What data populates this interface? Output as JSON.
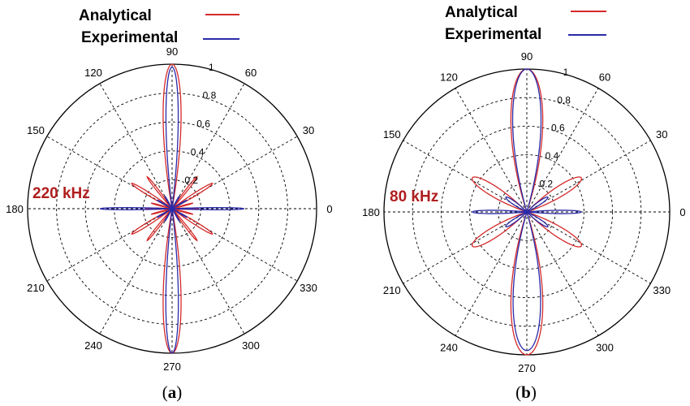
{
  "legend": {
    "analytical_label": "Analytical",
    "experimental_label": "Experimental"
  },
  "colors": {
    "analytical": "#d42a2a",
    "experimental": "#2a2aa8",
    "frequency_label": "#b01e1e",
    "grid": "#000000"
  },
  "chart_data": [
    {
      "type": "polar-line",
      "panel_caption_open": "(",
      "panel_caption_letter": "a",
      "panel_caption_close": ")",
      "annotation": "220 kHz",
      "angle_ticks": [
        "0",
        "30",
        "60",
        "90",
        "120",
        "150",
        "180",
        "210",
        "240",
        "270",
        "300",
        "330"
      ],
      "radial_ticks": [
        "0.2",
        "0.4",
        "0.6",
        "0.8",
        "1"
      ],
      "radial_range": [
        0,
        1
      ],
      "grid": true,
      "legend_position": "top",
      "series": [
        {
          "name": "Analytical",
          "color_key": "analytical",
          "lobes": [
            {
              "center": 90,
              "magnitude": 1.0,
              "half_width": 10
            },
            {
              "center": 270,
              "magnitude": 1.0,
              "half_width": 10
            },
            {
              "center": 148,
              "magnitude": 0.33,
              "half_width": 5
            },
            {
              "center": 32,
              "magnitude": 0.33,
              "half_width": 5
            },
            {
              "center": 212,
              "magnitude": 0.33,
              "half_width": 5
            },
            {
              "center": 328,
              "magnitude": 0.33,
              "half_width": 5
            },
            {
              "center": 128,
              "magnitude": 0.28,
              "half_width": 4
            },
            {
              "center": 52,
              "magnitude": 0.28,
              "half_width": 4
            },
            {
              "center": 232,
              "magnitude": 0.28,
              "half_width": 4
            },
            {
              "center": 308,
              "magnitude": 0.28,
              "half_width": 4
            },
            {
              "center": 0,
              "magnitude": 0.18,
              "half_width": 4
            },
            {
              "center": 180,
              "magnitude": 0.18,
              "half_width": 4
            },
            {
              "center": 165,
              "magnitude": 0.15,
              "half_width": 3
            },
            {
              "center": 15,
              "magnitude": 0.15,
              "half_width": 3
            },
            {
              "center": 195,
              "magnitude": 0.15,
              "half_width": 3
            },
            {
              "center": 345,
              "magnitude": 0.15,
              "half_width": 3
            }
          ]
        },
        {
          "name": "Experimental",
          "color_key": "experimental",
          "lobes": [
            {
              "center": 90,
              "magnitude": 0.98,
              "half_width": 7
            },
            {
              "center": 270,
              "magnitude": 1.0,
              "half_width": 7
            },
            {
              "center": 0,
              "magnitude": 0.5,
              "half_width": 2.5
            },
            {
              "center": 180,
              "magnitude": 0.5,
              "half_width": 2.5
            },
            {
              "center": 150,
              "magnitude": 0.12,
              "half_width": 3
            },
            {
              "center": 30,
              "magnitude": 0.12,
              "half_width": 3
            },
            {
              "center": 210,
              "magnitude": 0.12,
              "half_width": 3
            },
            {
              "center": 330,
              "magnitude": 0.12,
              "half_width": 3
            },
            {
              "center": 120,
              "magnitude": 0.1,
              "half_width": 3
            },
            {
              "center": 60,
              "magnitude": 0.1,
              "half_width": 3
            },
            {
              "center": 240,
              "magnitude": 0.1,
              "half_width": 3
            },
            {
              "center": 300,
              "magnitude": 0.1,
              "half_width": 3
            }
          ]
        }
      ]
    },
    {
      "type": "polar-line",
      "panel_caption_open": "(",
      "panel_caption_letter": "b",
      "panel_caption_close": ")",
      "annotation": "80 kHz",
      "angle_ticks": [
        "0",
        "30",
        "60",
        "90",
        "120",
        "150",
        "180",
        "210",
        "240",
        "270",
        "300",
        "330"
      ],
      "radial_ticks": [
        "0.2",
        "0.4",
        "0.6",
        "0.8",
        "1"
      ],
      "radial_range": [
        0,
        1
      ],
      "grid": true,
      "legend_position": "top",
      "series": [
        {
          "name": "Analytical",
          "color_key": "analytical",
          "lobes": [
            {
              "center": 90,
              "magnitude": 1.0,
              "half_width": 18
            },
            {
              "center": 270,
              "magnitude": 1.0,
              "half_width": 18
            },
            {
              "center": 148,
              "magnitude": 0.45,
              "half_width": 13
            },
            {
              "center": 32,
              "magnitude": 0.45,
              "half_width": 13
            },
            {
              "center": 212,
              "magnitude": 0.45,
              "half_width": 13
            },
            {
              "center": 328,
              "magnitude": 0.45,
              "half_width": 13
            }
          ]
        },
        {
          "name": "Experimental",
          "color_key": "experimental",
          "lobes": [
            {
              "center": 90,
              "magnitude": 1.0,
              "half_width": 16
            },
            {
              "center": 270,
              "magnitude": 0.97,
              "half_width": 16
            },
            {
              "center": 0,
              "magnitude": 0.38,
              "half_width": 5
            },
            {
              "center": 180,
              "magnitude": 0.38,
              "half_width": 5
            },
            {
              "center": 145,
              "magnitude": 0.18,
              "half_width": 10
            },
            {
              "center": 35,
              "magnitude": 0.18,
              "half_width": 10
            },
            {
              "center": 215,
              "magnitude": 0.18,
              "half_width": 10
            },
            {
              "center": 325,
              "magnitude": 0.18,
              "half_width": 10
            }
          ]
        }
      ]
    }
  ]
}
